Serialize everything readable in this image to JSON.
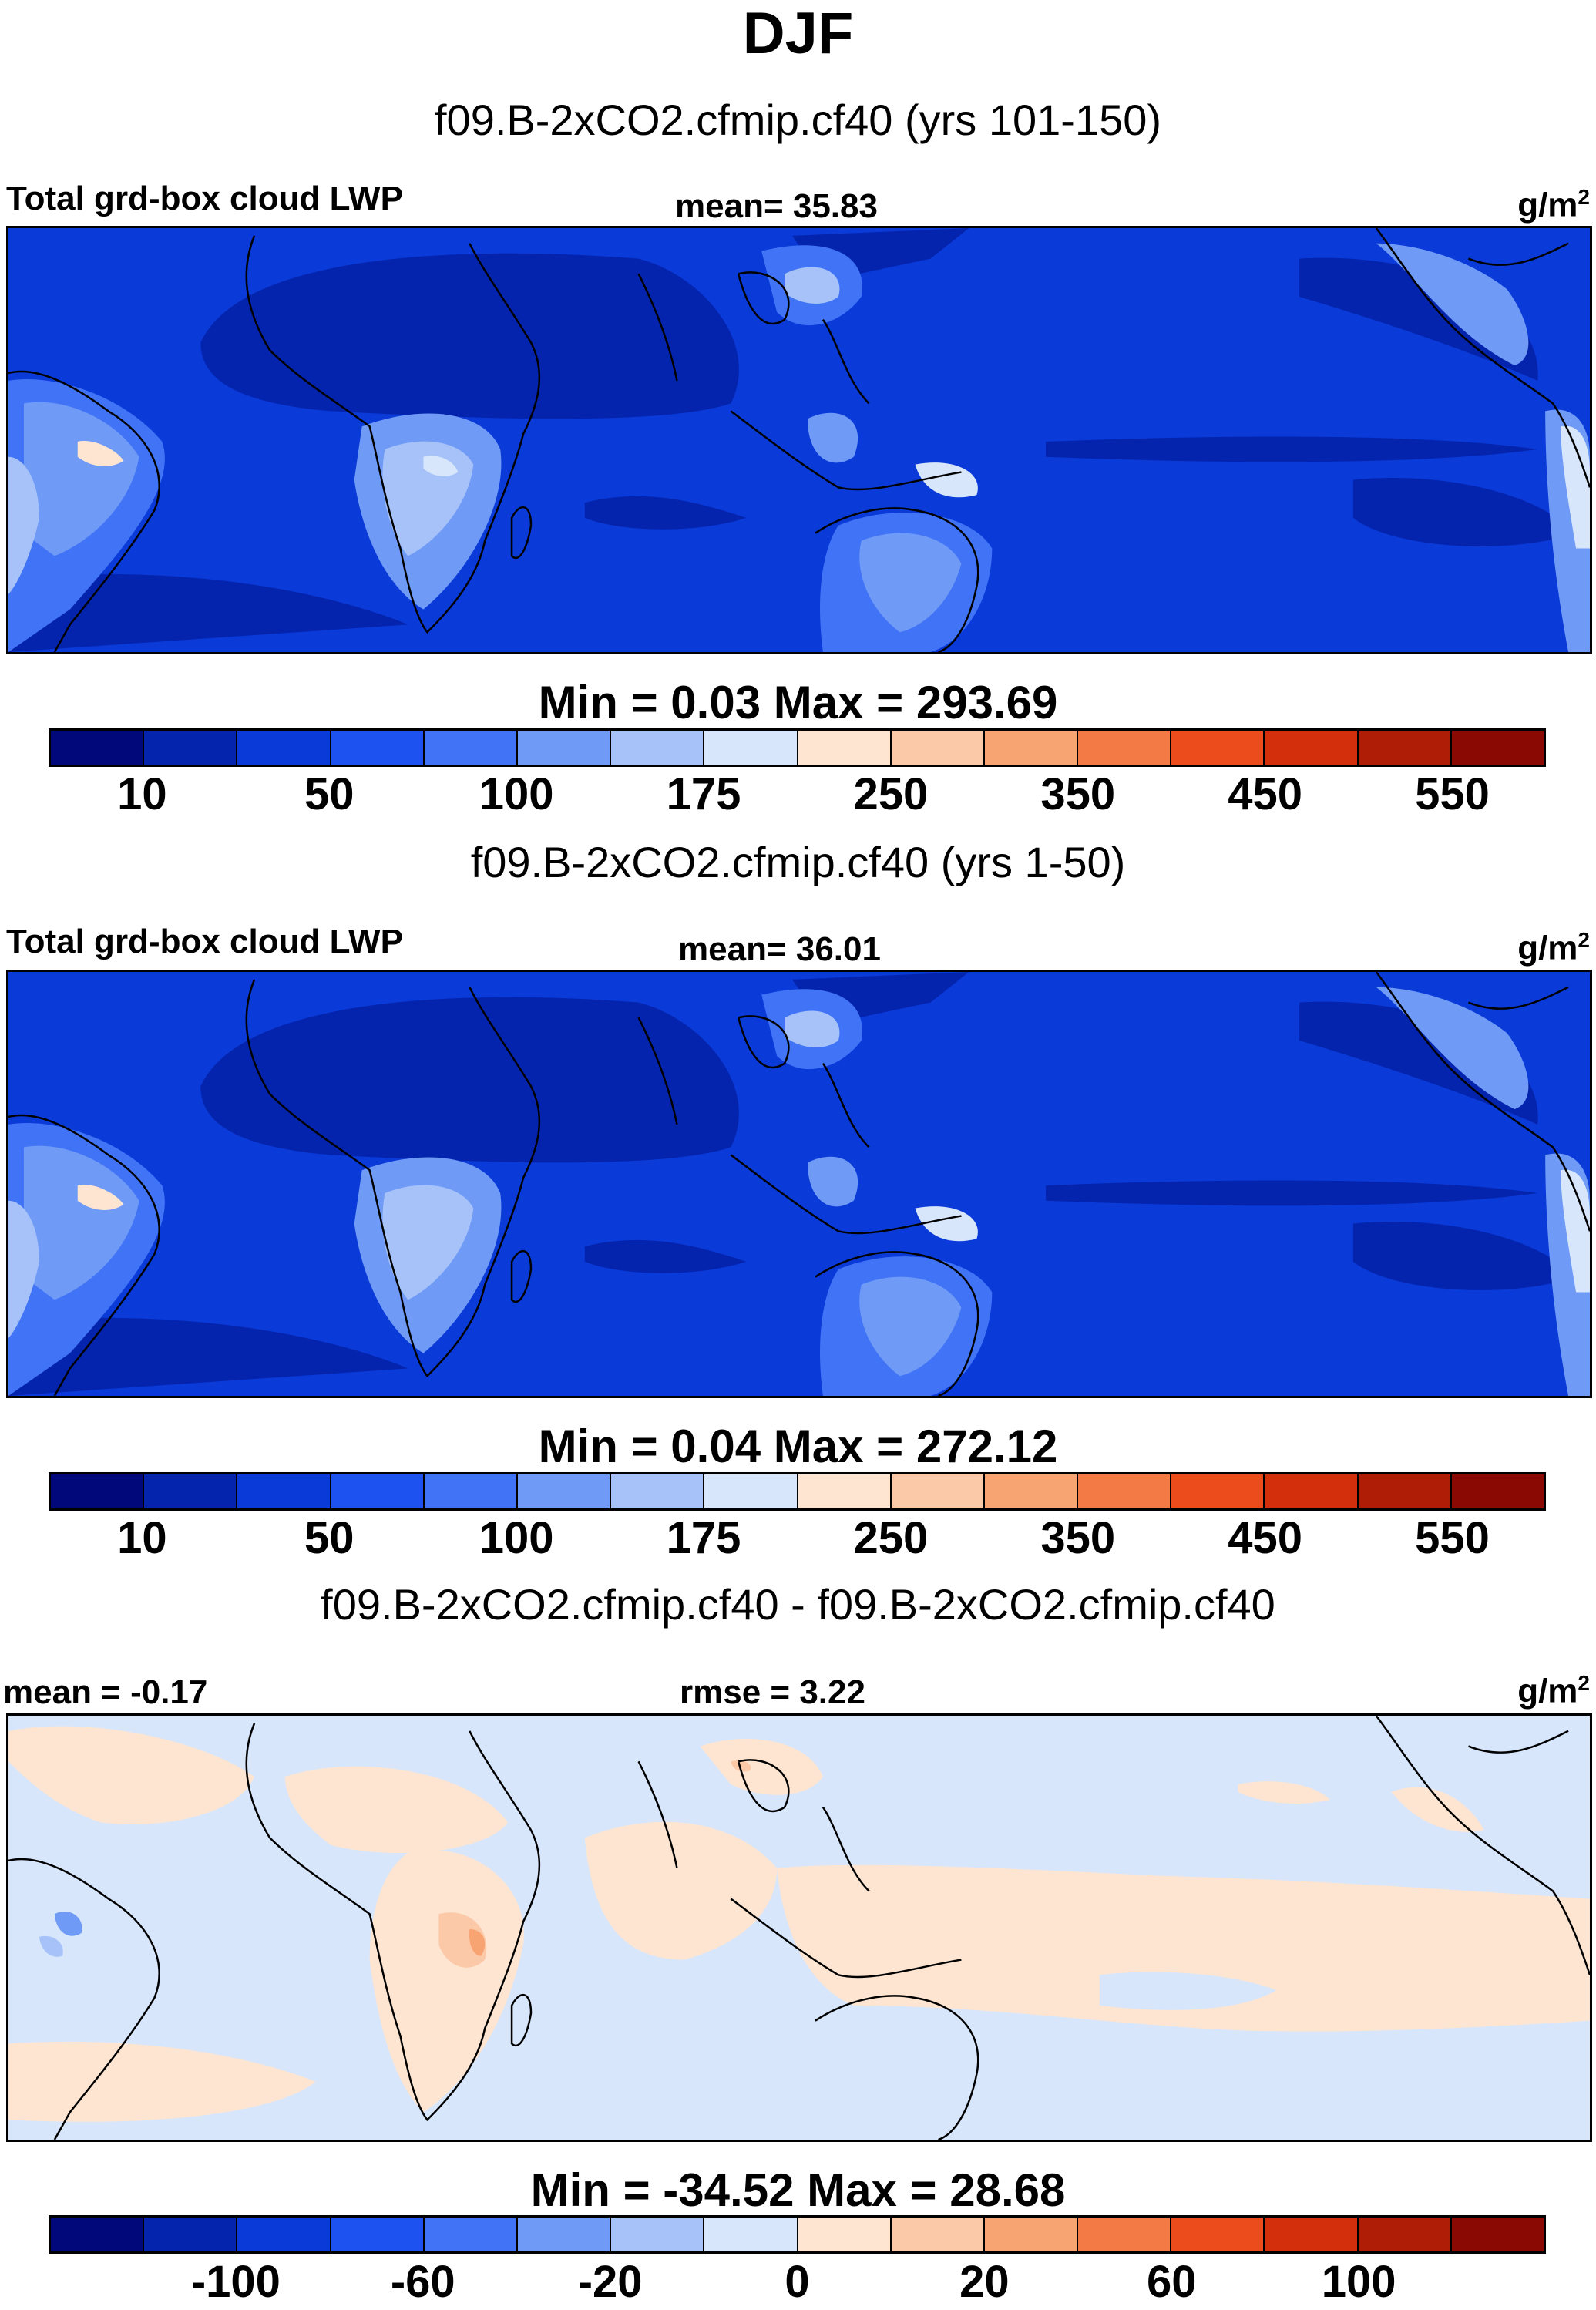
{
  "header": {
    "season": "DJF"
  },
  "panels": [
    {
      "subtitle": "f09.B-2xCO2.cfmip.cf40 (yrs 101-150)",
      "left_label": "Total grd-box cloud LWP",
      "center_label": "mean=  35.83",
      "units": "g/m",
      "units_sup": "2",
      "minmax": "Min =   0.03 Max = 293.69",
      "ticks": [
        "10",
        "50",
        "100",
        "175",
        "250",
        "350",
        "450",
        "550"
      ],
      "colors": [
        "#00087a",
        "#0524ad",
        "#0a3ad8",
        "#1d52f0",
        "#4073f5",
        "#6f9af6",
        "#a6c2f8",
        "#d7e6fb",
        "#fde5d2",
        "#fbc9a8",
        "#f8a372",
        "#f47a45",
        "#ec4b1c",
        "#d42f0c",
        "#b01d07",
        "#8a0a03"
      ],
      "stats": {
        "min": 0.03,
        "max": 293.69,
        "mean": 35.83
      }
    },
    {
      "subtitle": "f09.B-2xCO2.cfmip.cf40 (yrs 1-50)",
      "left_label": "Total grd-box cloud LWP",
      "center_label": "mean=  36.01",
      "units": "g/m",
      "units_sup": "2",
      "minmax": "Min =   0.04 Max = 272.12",
      "ticks": [
        "10",
        "50",
        "100",
        "175",
        "250",
        "350",
        "450",
        "550"
      ],
      "colors": [
        "#00087a",
        "#0524ad",
        "#0a3ad8",
        "#1d52f0",
        "#4073f5",
        "#6f9af6",
        "#a6c2f8",
        "#d7e6fb",
        "#fde5d2",
        "#fbc9a8",
        "#f8a372",
        "#f47a45",
        "#ec4b1c",
        "#d42f0c",
        "#b01d07",
        "#8a0a03"
      ],
      "stats": {
        "min": 0.04,
        "max": 272.12,
        "mean": 36.01
      }
    },
    {
      "subtitle": "f09.B-2xCO2.cfmip.cf40 - f09.B-2xCO2.cfmip.cf40",
      "left_label": "mean =  -0.17",
      "center_label": "rmse =   3.22",
      "units": "g/m",
      "units_sup": "2",
      "minmax": "Min = -34.52 Max =  28.68",
      "ticks": [
        "-100",
        "-60",
        "-20",
        "0",
        "20",
        "60",
        "100"
      ],
      "colors": [
        "#00087a",
        "#0524ad",
        "#0a3ad8",
        "#1d52f0",
        "#4073f5",
        "#6f9af6",
        "#a6c2f8",
        "#d7e6fb",
        "#fde5d2",
        "#fbc9a8",
        "#f8a372",
        "#f47a45",
        "#ec4b1c",
        "#d42f0c",
        "#b01d07",
        "#8a0a03"
      ],
      "stats": {
        "min": -34.52,
        "max": 28.68,
        "mean": -0.17,
        "rmse": 3.22
      }
    }
  ]
}
